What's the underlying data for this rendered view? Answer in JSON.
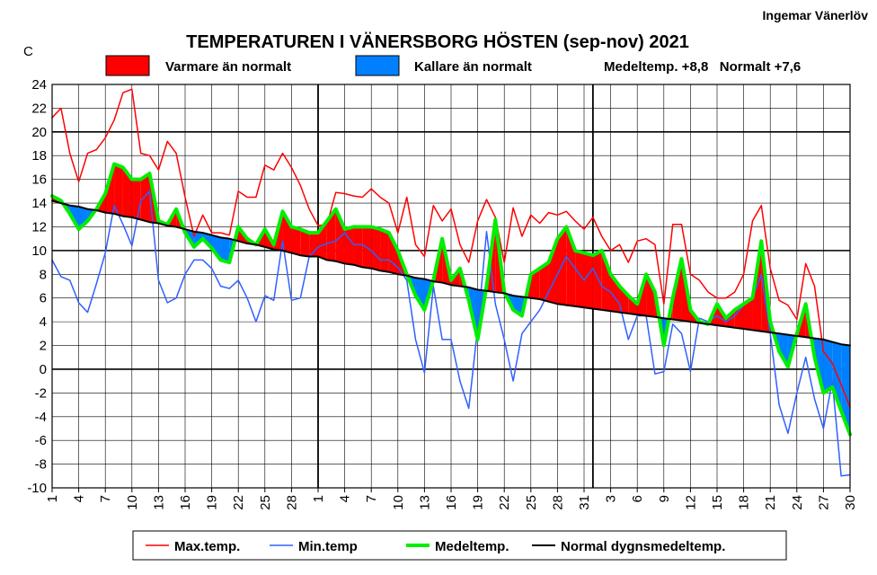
{
  "chart_data": {
    "type": "line",
    "title": "TEMPERATUREN I VÄNERSBORG  HÖSTEN (sep-nov) 2021",
    "author": "Ingemar Vänerlöv",
    "ylabel": "C",
    "ylim": [
      -10,
      24
    ],
    "yticks": [
      24,
      22,
      20,
      18,
      16,
      14,
      12,
      10,
      8,
      6,
      4,
      2,
      0,
      -2,
      -4,
      -6,
      -8,
      -10
    ],
    "xtick_labels": [
      "1",
      "4",
      "7",
      "10",
      "13",
      "16",
      "19",
      "22",
      "25",
      "28",
      "1",
      "4",
      "7",
      "10",
      "13",
      "16",
      "19",
      "22",
      "25",
      "28",
      "31",
      "3",
      "6",
      "9",
      "12",
      "15",
      "18",
      "21",
      "24",
      "27",
      "30"
    ],
    "grid": true,
    "month_starts": [
      1,
      31,
      62
    ],
    "fill_legend": {
      "warm_label": "Varmare än normalt",
      "cold_label": "Kallare än normalt",
      "warm_color": "#ff0000",
      "cold_color": "#0080ff",
      "stats": "Medeltemp. +8,8   Normalt +7,6"
    },
    "x": [
      1,
      2,
      3,
      4,
      5,
      6,
      7,
      8,
      9,
      10,
      11,
      12,
      13,
      14,
      15,
      16,
      17,
      18,
      19,
      20,
      21,
      22,
      23,
      24,
      25,
      26,
      27,
      28,
      29,
      30,
      31,
      32,
      33,
      34,
      35,
      36,
      37,
      38,
      39,
      40,
      41,
      42,
      43,
      44,
      45,
      46,
      47,
      48,
      49,
      50,
      51,
      52,
      53,
      54,
      55,
      56,
      57,
      58,
      59,
      60,
      61,
      62,
      63,
      64,
      65,
      66,
      67,
      68,
      69,
      70,
      71,
      72,
      73,
      74,
      75,
      76,
      77,
      78,
      79,
      80,
      81,
      82,
      83,
      84,
      85,
      86,
      87,
      88,
      89,
      90,
      91
    ],
    "series": [
      {
        "name": "Max.temp.",
        "color": "#ff0000",
        "width": 1.5,
        "values": [
          21.2,
          22.0,
          18.2,
          15.8,
          18.2,
          18.5,
          19.5,
          21.0,
          23.3,
          23.6,
          18.2,
          18.0,
          16.8,
          19.2,
          18.2,
          14.5,
          11.2,
          13.0,
          11.5,
          11.5,
          11.3,
          15.0,
          14.5,
          14.5,
          17.2,
          16.8,
          18.2,
          17.0,
          15.5,
          13.5,
          12.1,
          12.2,
          14.9,
          14.8,
          14.6,
          14.5,
          15.2,
          14.5,
          14.0,
          11.5,
          14.5,
          10.5,
          9.5,
          13.8,
          12.5,
          13.5,
          10.5,
          9.0,
          12.5,
          14.3,
          12.8,
          9.0,
          13.6,
          11.2,
          13.0,
          12.3,
          13.2,
          13.0,
          13.3,
          12.5,
          11.8,
          12.8,
          11.2,
          10.0,
          10.5,
          9.0,
          10.8,
          11.0,
          10.5,
          5.5,
          12.2,
          12.2,
          8.0,
          7.5,
          6.5,
          6.0,
          6.0,
          6.5,
          8.0,
          12.5,
          13.8,
          8.5,
          5.8,
          5.4,
          4.2,
          8.9,
          7.0,
          1.5,
          0.5,
          -1.3,
          -3.2
        ]
      },
      {
        "name": "Min.temp",
        "color": "#3060ff",
        "width": 1.5,
        "values": [
          9.2,
          7.8,
          7.5,
          5.6,
          4.8,
          7.2,
          9.8,
          13.8,
          12.2,
          10.4,
          14.2,
          15.0,
          7.5,
          5.6,
          6.0,
          8.0,
          9.2,
          9.2,
          8.5,
          7.0,
          6.8,
          7.5,
          6.0,
          4.0,
          6.2,
          5.8,
          10.8,
          5.8,
          6.0,
          9.5,
          10.3,
          10.6,
          10.8,
          11.5,
          10.5,
          10.5,
          10.0,
          9.2,
          9.2,
          8.6,
          7.5,
          2.5,
          -0.3,
          7.0,
          2.5,
          2.5,
          -1.0,
          -3.3,
          3.5,
          11.6,
          5.5,
          2.5,
          -1.0,
          3.0,
          4.0,
          5.0,
          6.5,
          8.0,
          9.5,
          8.5,
          7.5,
          8.5,
          7.0,
          6.5,
          5.5,
          2.5,
          4.5,
          4.5,
          -0.4,
          -0.2,
          3.8,
          3.0,
          -0.2,
          4.3,
          4.0,
          4.5,
          4.0,
          4.5,
          5.4,
          6.0,
          8.0,
          3.0,
          -3.0,
          -5.4,
          -2.0,
          1.0,
          -2.5,
          -5.0,
          -1.0,
          -9.0,
          -8.9
        ]
      },
      {
        "name": "Medeltemp.",
        "color": "#00ee00",
        "width": 4,
        "values": [
          14.6,
          14.2,
          13.1,
          11.8,
          12.5,
          13.5,
          14.8,
          17.3,
          17.0,
          16.0,
          16.0,
          16.5,
          12.5,
          12.2,
          13.5,
          11.5,
          10.3,
          11.0,
          10.2,
          9.2,
          9.0,
          12.0,
          11.0,
          10.5,
          11.8,
          10.5,
          13.3,
          12.0,
          11.8,
          11.5,
          11.5,
          12.5,
          13.5,
          11.8,
          12.0,
          12.0,
          12.0,
          11.8,
          11.5,
          10.0,
          8.0,
          6.2,
          5.0,
          7.5,
          11.0,
          7.5,
          8.5,
          5.8,
          2.5,
          7.0,
          12.6,
          6.5,
          5.0,
          4.5,
          8.0,
          8.5,
          9.0,
          11.0,
          12.0,
          10.0,
          9.8,
          9.6,
          10.0,
          8.0,
          7.0,
          6.2,
          5.5,
          8.0,
          6.5,
          2.0,
          6.0,
          9.3,
          5.0,
          4.0,
          3.8,
          5.5,
          4.3,
          5.0,
          5.5,
          6.0,
          10.8,
          4.0,
          1.5,
          0.2,
          3.0,
          5.5,
          1.0,
          -2.0,
          -1.5,
          -3.5,
          -5.5
        ]
      },
      {
        "name": "Normal dygnsmedeltemp.",
        "color": "#000000",
        "width": 2,
        "values": [
          14.2,
          14.0,
          13.8,
          13.7,
          13.5,
          13.4,
          13.2,
          13.1,
          12.9,
          12.8,
          12.6,
          12.4,
          12.3,
          12.1,
          12.0,
          11.8,
          11.6,
          11.5,
          11.3,
          11.1,
          11.0,
          10.8,
          10.6,
          10.5,
          10.3,
          10.1,
          10.0,
          9.8,
          9.6,
          9.5,
          9.5,
          9.2,
          9.1,
          8.9,
          8.8,
          8.6,
          8.5,
          8.3,
          8.2,
          8.0,
          7.9,
          7.7,
          7.6,
          7.4,
          7.3,
          7.1,
          7.0,
          6.9,
          6.7,
          6.6,
          6.5,
          6.4,
          6.2,
          6.1,
          6.0,
          5.9,
          5.7,
          5.5,
          5.4,
          5.3,
          5.2,
          5.1,
          5.0,
          4.9,
          4.8,
          4.7,
          4.6,
          4.5,
          4.4,
          4.3,
          4.2,
          4.1,
          4.0,
          3.9,
          3.8,
          3.7,
          3.6,
          3.5,
          3.4,
          3.3,
          3.2,
          3.1,
          3.0,
          2.9,
          2.8,
          2.7,
          2.6,
          2.5,
          2.3,
          2.1,
          2.0
        ]
      }
    ],
    "legend": {
      "entries": [
        {
          "label": "Max.temp.",
          "color": "#ff0000",
          "width": 1.5
        },
        {
          "label": "Min.temp",
          "color": "#3060ff",
          "width": 1.5
        },
        {
          "label": "Medeltemp.",
          "color": "#00ee00",
          "width": 4
        },
        {
          "label": "Normal dygnsmedeltemp.",
          "color": "#000000",
          "width": 2
        }
      ],
      "placement": "bottom"
    }
  }
}
